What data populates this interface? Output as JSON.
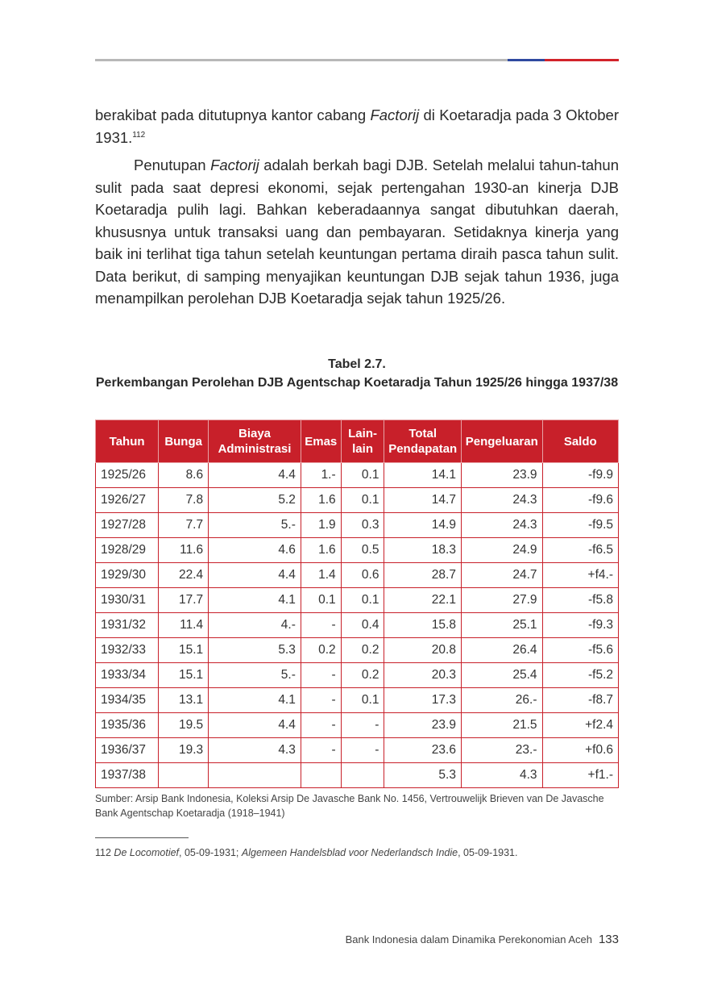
{
  "body": {
    "p1_a": "berakibat pada ditutupnya kantor cabang ",
    "p1_italic": "Factorij",
    "p1_b": " di Koetaradja pada 3 Oktober 1931.",
    "p1_note": "112",
    "p2_a": "Penutupan ",
    "p2_italic": "Factorij",
    "p2_b": " adalah berkah bagi DJB. Setelah melalui tahun-tahun sulit pada saat depresi ekonomi, sejak pertengahan 1930-an kinerja DJB Koetaradja pulih lagi. Bahkan keberadaannya sangat dibutuhkan daerah, khususnya untuk transaksi uang dan pembayaran. Setidaknya kinerja yang baik ini terlihat tiga tahun setelah keuntungan pertama diraih pasca tahun sulit. Data berikut, di samping menyajikan keuntungan DJB sejak tahun 1936, juga menampilkan perolehan DJB Koetaradja sejak tahun 1925/26."
  },
  "table": {
    "number": "Tabel 2.7.",
    "title": "Perkembangan Perolehan DJB Agentschap Koetaradja Tahun 1925/26 hingga 1937/38",
    "headers": {
      "tahun": "Tahun",
      "bunga": "Bunga",
      "biaya_1": "Biaya",
      "biaya_2": "Administrasi",
      "emas": "Emas",
      "lain_1": "Lain-",
      "lain_2": "lain",
      "total_1": "Total",
      "total_2": "Pendapatan",
      "pengeluaran": "Pengeluaran",
      "saldo": "Saldo"
    },
    "rows": [
      [
        "1925/26",
        "8.6",
        "4.4",
        "1.-",
        "0.1",
        "14.1",
        "23.9",
        "-f9.9"
      ],
      [
        "1926/27",
        "7.8",
        "5.2",
        "1.6",
        "0.1",
        "14.7",
        "24.3",
        "-f9.6"
      ],
      [
        "1927/28",
        "7.7",
        "5.-",
        "1.9",
        "0.3",
        "14.9",
        "24.3",
        "-f9.5"
      ],
      [
        "1928/29",
        "11.6",
        "4.6",
        "1.6",
        "0.5",
        "18.3",
        "24.9",
        "-f6.5"
      ],
      [
        "1929/30",
        "22.4",
        "4.4",
        "1.4",
        "0.6",
        "28.7",
        "24.7",
        "+f4.-"
      ],
      [
        "1930/31",
        "17.7",
        "4.1",
        "0.1",
        "0.1",
        "22.1",
        "27.9",
        "-f5.8"
      ],
      [
        "1931/32",
        "11.4",
        "4.-",
        "-",
        "0.4",
        "15.8",
        "25.1",
        "-f9.3"
      ],
      [
        "1932/33",
        "15.1",
        "5.3",
        "0.2",
        "0.2",
        "20.8",
        "26.4",
        "-f5.6"
      ],
      [
        "1933/34",
        "15.1",
        "5.-",
        "-",
        "0.2",
        "20.3",
        "25.4",
        "-f5.2"
      ],
      [
        "1934/35",
        "13.1",
        "4.1",
        "-",
        "0.1",
        "17.3",
        "26.-",
        "-f8.7"
      ],
      [
        "1935/36",
        "19.5",
        "4.4",
        "-",
        "-",
        "23.9",
        "21.5",
        "+f2.4"
      ],
      [
        "1936/37",
        "19.3",
        "4.3",
        "-",
        "-",
        "23.6",
        "23.-",
        "+f0.6"
      ],
      [
        "1937/38",
        "",
        "",
        "",
        "",
        "5.3",
        "4.3",
        "+f1.-"
      ]
    ],
    "source": "Sumber: Arsip Bank Indonesia, Koleksi Arsip De Javasche Bank No. 1456, Vertrouwelijk Brieven van De Javasche Bank Agentschap Koetaradja (1918–1941)"
  },
  "footnote": {
    "number": "112",
    "italic_1": "De Locomotief",
    "text_1": ", 05-09-1931; ",
    "italic_2": "Algemeen Handelsblad voor Nederlandsch Indie",
    "text_2": ", 05-09-1931."
  },
  "footer": {
    "book_title": "Bank Indonesia dalam Dinamika Perekonomian Aceh",
    "page_number": "133"
  },
  "colors": {
    "table_header": "#c8202a",
    "rule_blue": "#2f4aa0",
    "rule_red": "#d2232a",
    "rule_gray": "#b8b8b8"
  }
}
